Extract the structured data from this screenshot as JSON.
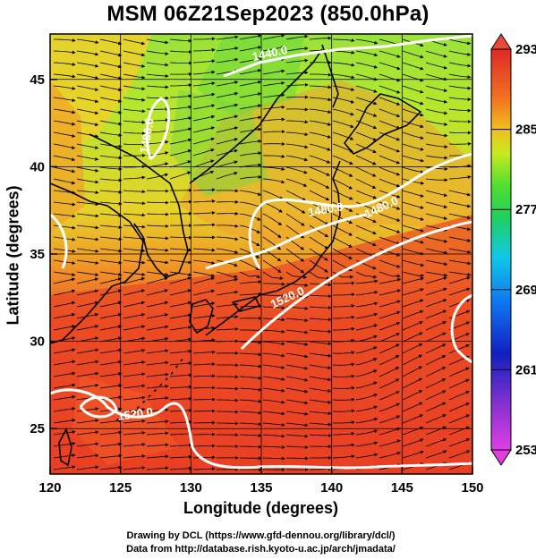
{
  "title": "MSM 06Z21Sep2023 (850.0hPa)",
  "axes": {
    "x_label": "Longitude (degrees)",
    "y_label": "Latitude  (degrees)",
    "x_ticks": [
      "120",
      "125",
      "130",
      "135",
      "140",
      "145",
      "150"
    ],
    "y_ticks": [
      "25",
      "30",
      "35",
      "40",
      "45"
    ]
  },
  "map": {
    "lon_range": [
      120,
      150
    ],
    "lat_range": [
      22.4,
      47.6
    ],
    "projection": "equirectangular",
    "field": "temperature shading with wind streamlines",
    "contour_labels": [
      "1440.0",
      "1480.0",
      "1480.0",
      "1480.0",
      "1520.0",
      "1520.0"
    ]
  },
  "colorbar": {
    "ticks": [
      "293",
      "285",
      "277",
      "269",
      "261",
      "253"
    ],
    "range": [
      253,
      293
    ],
    "palette": [
      "#e040e0",
      "#1010c0",
      "#1060f0",
      "#10c0f0",
      "#20d060",
      "#40e020",
      "#c8e820",
      "#f0c020",
      "#f07020",
      "#e03020",
      "#e02828"
    ]
  },
  "credits": {
    "line1": "Drawing by DCL (https://www.gfd-dennou.org/library/dcl/)",
    "line2": "Data from http://database.rish.kyoto-u.ac.jp/arch/jmadata/"
  }
}
